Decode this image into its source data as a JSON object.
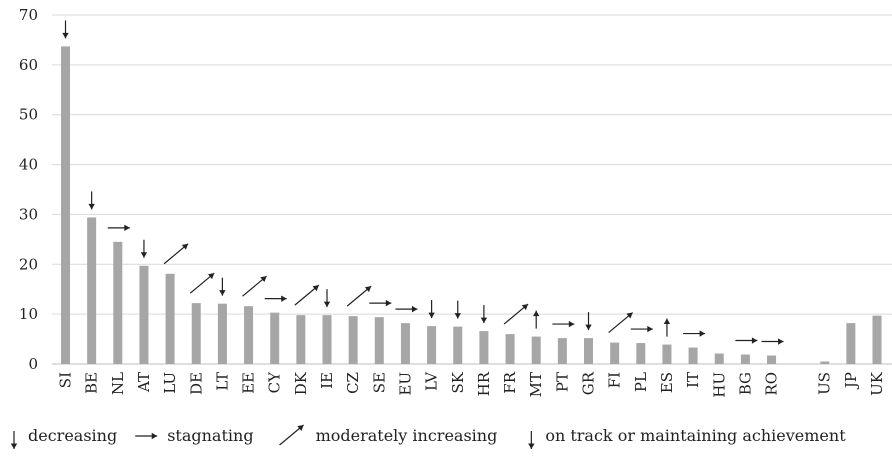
{
  "chart_data": {
    "type": "bar",
    "categories": [
      "SI",
      "BE",
      "NL",
      "AT",
      "LU",
      "DE",
      "LT",
      "EE",
      "CY",
      "DK",
      "IE",
      "CZ",
      "SE",
      "EU",
      "LV",
      "SK",
      "HR",
      "FR",
      "MT",
      "PT",
      "GR",
      "FI",
      "PL",
      "ES",
      "IT",
      "HU",
      "BG",
      "RO",
      "US",
      "JP",
      "UK"
    ],
    "values": [
      63.7,
      29.4,
      24.5,
      19.7,
      18.1,
      12.2,
      12.1,
      11.6,
      10.3,
      9.8,
      9.8,
      9.6,
      9.4,
      8.2,
      7.6,
      7.5,
      6.6,
      6.0,
      5.5,
      5.2,
      5.2,
      4.3,
      4.2,
      3.9,
      3.3,
      2.1,
      1.9,
      1.7,
      0.5,
      8.2,
      9.7
    ],
    "trends": [
      "down",
      "down",
      "flat",
      "down",
      "up",
      "up",
      "down",
      "up",
      "flat",
      "up",
      "down",
      "up",
      "flat",
      "flat",
      "down",
      "down",
      "down",
      "up",
      "uptrack",
      "flat",
      "down",
      "up",
      "flat",
      "uptrack",
      "flat",
      "",
      "flat",
      "flat",
      "",
      "",
      ""
    ],
    "ylim": [
      0,
      70
    ],
    "yticks": [
      0,
      10,
      20,
      30,
      40,
      50,
      60,
      70
    ],
    "grid": true,
    "bar_color": "#a6a6a6",
    "grid_color": "#d9d9d9",
    "legend": {
      "placement": "bottom",
      "items": [
        {
          "icon": "arrow-down-icon",
          "label": "decreasing"
        },
        {
          "icon": "arrow-right-icon",
          "label": "stagnating"
        },
        {
          "icon": "arrow-up-right-icon",
          "label": "moderately increasing"
        },
        {
          "icon": "arrow-down-icon",
          "label": "on track or maintaining achievement"
        }
      ]
    }
  }
}
